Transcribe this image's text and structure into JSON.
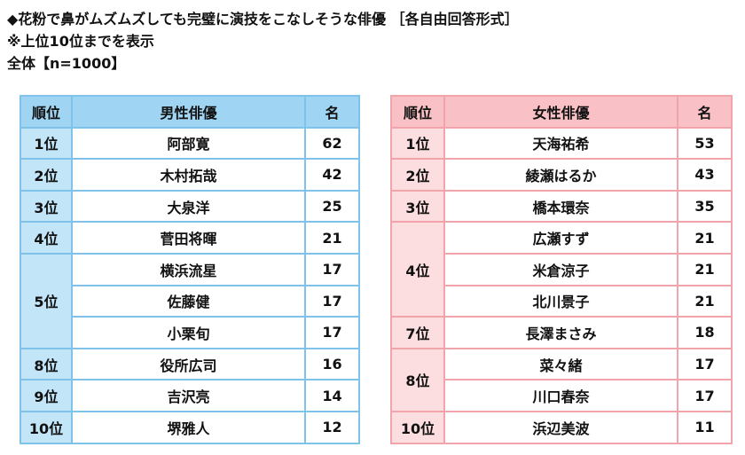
{
  "header": {
    "title": "◆花粉で鼻がムズムズしても完璧に演技をこなしそうな俳優 ［各自由回答形式］",
    "note": "※上位10位までを表示",
    "base": "全体【n=1000】"
  },
  "tables": [
    {
      "columns": [
        "順位",
        "男性俳優",
        "名"
      ],
      "groups": [
        {
          "rank": "1位",
          "rows": [
            {
              "name": "阿部寛",
              "count": 62
            }
          ]
        },
        {
          "rank": "2位",
          "rows": [
            {
              "name": "木村拓哉",
              "count": 42
            }
          ]
        },
        {
          "rank": "3位",
          "rows": [
            {
              "name": "大泉洋",
              "count": 25
            }
          ]
        },
        {
          "rank": "4位",
          "rows": [
            {
              "name": "菅田将暉",
              "count": 21
            }
          ]
        },
        {
          "rank": "5位",
          "rows": [
            {
              "name": "横浜流星",
              "count": 17
            },
            {
              "name": "佐藤健",
              "count": 17
            },
            {
              "name": "小栗旬",
              "count": 17
            }
          ]
        },
        {
          "rank": "8位",
          "rows": [
            {
              "name": "役所広司",
              "count": 16
            }
          ]
        },
        {
          "rank": "9位",
          "rows": [
            {
              "name": "吉沢亮",
              "count": 14
            }
          ]
        },
        {
          "rank": "10位",
          "rows": [
            {
              "name": "堺雅人",
              "count": 12
            }
          ]
        }
      ]
    },
    {
      "columns": [
        "順位",
        "女性俳優",
        "名"
      ],
      "groups": [
        {
          "rank": "1位",
          "rows": [
            {
              "name": "天海祐希",
              "count": 53
            }
          ]
        },
        {
          "rank": "2位",
          "rows": [
            {
              "name": "綾瀬はるか",
              "count": 43
            }
          ]
        },
        {
          "rank": "3位",
          "rows": [
            {
              "name": "橋本環奈",
              "count": 35
            }
          ]
        },
        {
          "rank": "4位",
          "rows": [
            {
              "name": "広瀬すず",
              "count": 21
            },
            {
              "name": "米倉涼子",
              "count": 21
            },
            {
              "name": "北川景子",
              "count": 21
            }
          ]
        },
        {
          "rank": "7位",
          "rows": [
            {
              "name": "長澤まさみ",
              "count": 18
            }
          ]
        },
        {
          "rank": "8位",
          "rows": [
            {
              "name": "菜々緒",
              "count": 17
            },
            {
              "name": "川口春奈",
              "count": 17
            }
          ]
        },
        {
          "rank": "10位",
          "rows": [
            {
              "name": "浜辺美波",
              "count": 11
            }
          ]
        }
      ]
    }
  ]
}
